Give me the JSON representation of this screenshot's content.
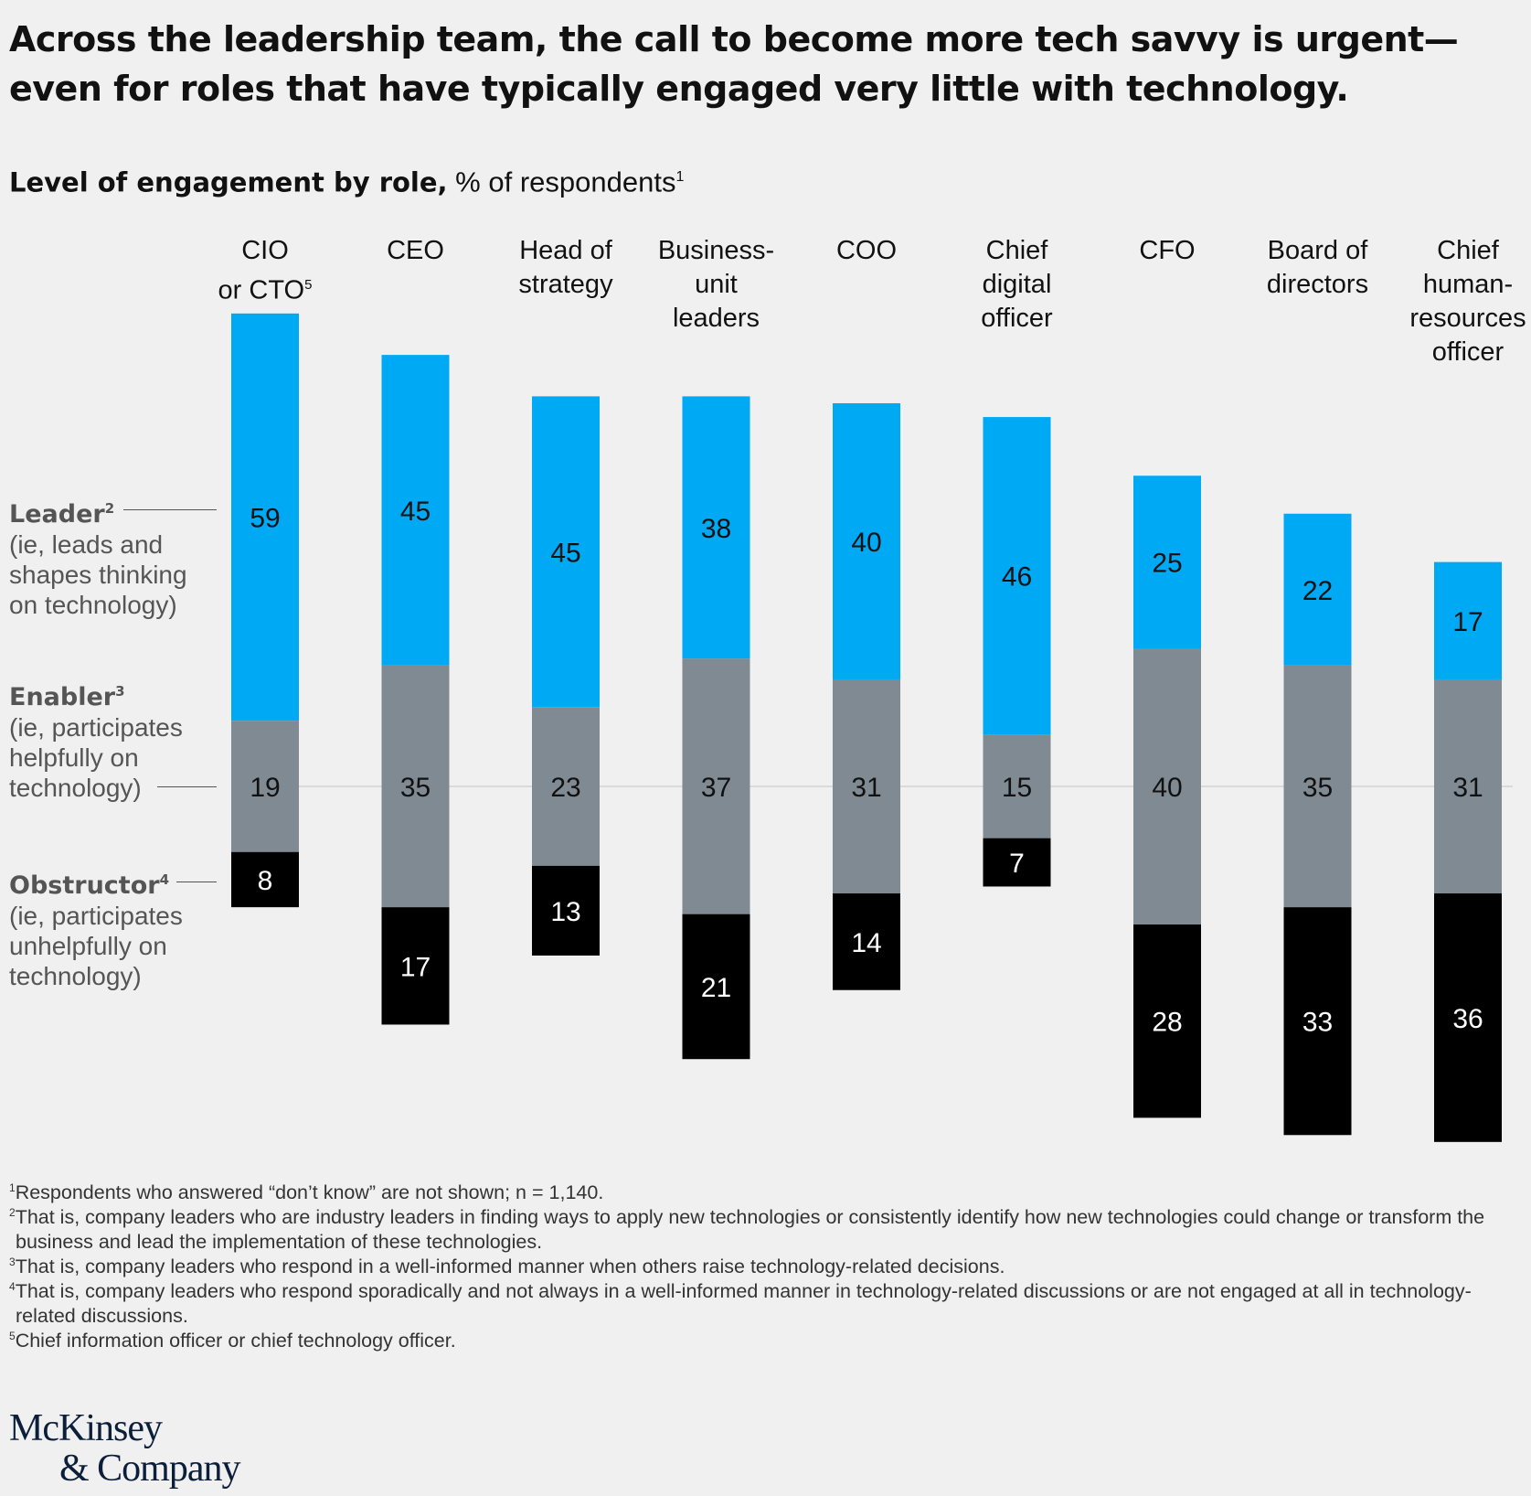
{
  "title": "Across the leadership team, the call to become more tech savvy is urgent—even for roles that have typically engaged very little with technology.",
  "subtitle": {
    "bold": "Level of engagement by role,",
    "rest": " % of respondents",
    "sup": "1"
  },
  "legend": {
    "leader": {
      "name": "Leader",
      "sup": "2",
      "desc": "(ie, leads and shapes thinking on technology)"
    },
    "enabler": {
      "name": "Enabler",
      "sup": "3",
      "desc": "(ie, participates helpfully on technology)"
    },
    "obstructor": {
      "name": "Obstructor",
      "sup": "4",
      "desc": "(ie, participates unhelpfully on technology)"
    }
  },
  "colors": {
    "leader": "#00a9f4",
    "enabler": "#808a93",
    "obstructor": "#000000",
    "background": "#f0f0f0"
  },
  "chart_data": {
    "type": "bar",
    "stacked": true,
    "baseline": "enabler segment centered on a common horizontal line",
    "categories": [
      "CIO or CTO",
      "CEO",
      "Head of strategy",
      "Business-unit leaders",
      "COO",
      "Chief digital officer",
      "CFO",
      "Board of directors",
      "Chief human-resources officer"
    ],
    "category_label_lines": [
      [
        "CIO",
        "or CTO"
      ],
      [
        "CEO"
      ],
      [
        "Head of",
        "strategy"
      ],
      [
        "Business-",
        "unit",
        "leaders"
      ],
      [
        "COO"
      ],
      [
        "Chief",
        "digital",
        "officer"
      ],
      [
        "CFO"
      ],
      [
        "Board of",
        "directors"
      ],
      [
        "Chief",
        "human-",
        "resources",
        "officer"
      ]
    ],
    "category_sup": [
      "5",
      "",
      "",
      "",
      "",
      "",
      "",
      "",
      ""
    ],
    "series": [
      {
        "name": "Leader",
        "values": [
          59,
          45,
          45,
          38,
          40,
          46,
          25,
          22,
          17
        ]
      },
      {
        "name": "Enabler",
        "values": [
          19,
          35,
          23,
          37,
          31,
          15,
          40,
          35,
          31
        ]
      },
      {
        "name": "Obstructor",
        "values": [
          8,
          17,
          13,
          21,
          14,
          7,
          28,
          33,
          36
        ]
      }
    ]
  },
  "footnotes": [
    {
      "sup": "1",
      "text": "Respondents who answered “don’t know” are not shown; n = 1,140."
    },
    {
      "sup": "2",
      "text": "That is, company leaders who are industry leaders in finding ways to apply new technologies or consistently identify how new technologies could change or transform the business and lead the implementation of these technologies."
    },
    {
      "sup": "3",
      "text": "That is, company leaders who respond in a well-informed manner when others raise technology-related decisions."
    },
    {
      "sup": "4",
      "text": "That is, company leaders who respond sporadically and not always in a well-informed manner in technology-related discussions or are not engaged at all in technology-related discussions."
    },
    {
      "sup": "5",
      "text": "Chief information officer or chief technology officer."
    }
  ],
  "logo": {
    "line1": "McKinsey",
    "line2": "& Company"
  }
}
